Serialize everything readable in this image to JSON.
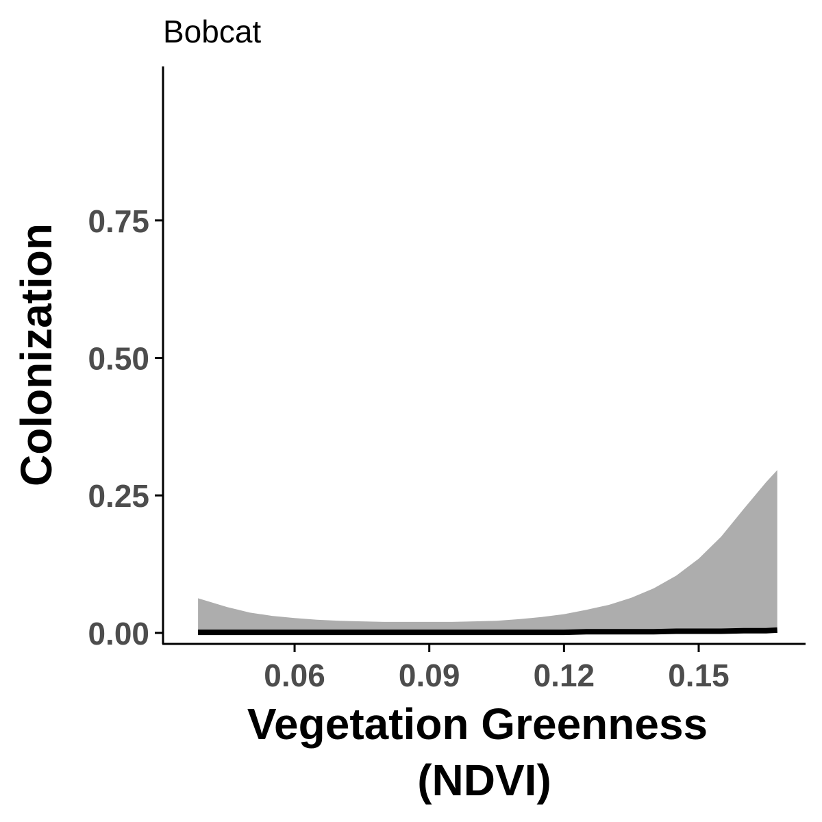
{
  "chart_data": {
    "type": "line",
    "title": "Bobcat",
    "xlabel_lines": [
      "Vegetation Greenness",
      "(NDVI)"
    ],
    "ylabel": "Colonization",
    "xlim": [
      0.0307,
      0.1738
    ],
    "ylim": [
      -0.02,
      1.03
    ],
    "x_ticks": [
      0.06,
      0.09,
      0.12,
      0.15
    ],
    "x_tick_labels": [
      "0.06",
      "0.09",
      "0.12",
      "0.15"
    ],
    "y_ticks": [
      0,
      0.25,
      0.5,
      0.75
    ],
    "y_tick_labels": [
      "0.00",
      "0.25",
      "0.50",
      "0.75"
    ],
    "grid": false,
    "legend": "none",
    "colors": {
      "ribbon": "#adadad",
      "line": "#000000",
      "axis": "#000000"
    },
    "series": [
      {
        "x": [
          0.0385,
          0.045,
          0.05,
          0.055,
          0.06,
          0.065,
          0.07,
          0.075,
          0.08,
          0.085,
          0.09,
          0.095,
          0.1,
          0.105,
          0.11,
          0.115,
          0.12,
          0.125,
          0.13,
          0.135,
          0.14,
          0.145,
          0.15,
          0.155,
          0.16,
          0.165,
          0.1675
        ],
        "y": [
          0.001,
          0.001,
          0.001,
          0.001,
          0.001,
          0.001,
          0.001,
          0.001,
          0.001,
          0.001,
          0.001,
          0.001,
          0.001,
          0.001,
          0.001,
          0.001,
          0.001,
          0.002,
          0.002,
          0.002,
          0.002,
          0.003,
          0.003,
          0.003,
          0.004,
          0.004,
          0.005
        ],
        "lower": [
          0,
          0,
          0,
          0,
          0,
          0,
          0,
          0,
          0,
          0,
          0,
          0,
          0,
          0,
          0,
          0,
          0,
          0,
          0,
          0,
          0,
          0,
          0,
          0,
          0,
          0,
          0
        ],
        "upper": [
          0.063,
          0.047,
          0.037,
          0.031,
          0.027,
          0.024,
          0.022,
          0.021,
          0.02,
          0.02,
          0.02,
          0.02,
          0.021,
          0.022,
          0.025,
          0.029,
          0.034,
          0.042,
          0.051,
          0.064,
          0.081,
          0.104,
          0.135,
          0.175,
          0.225,
          0.274,
          0.296
        ]
      }
    ]
  }
}
